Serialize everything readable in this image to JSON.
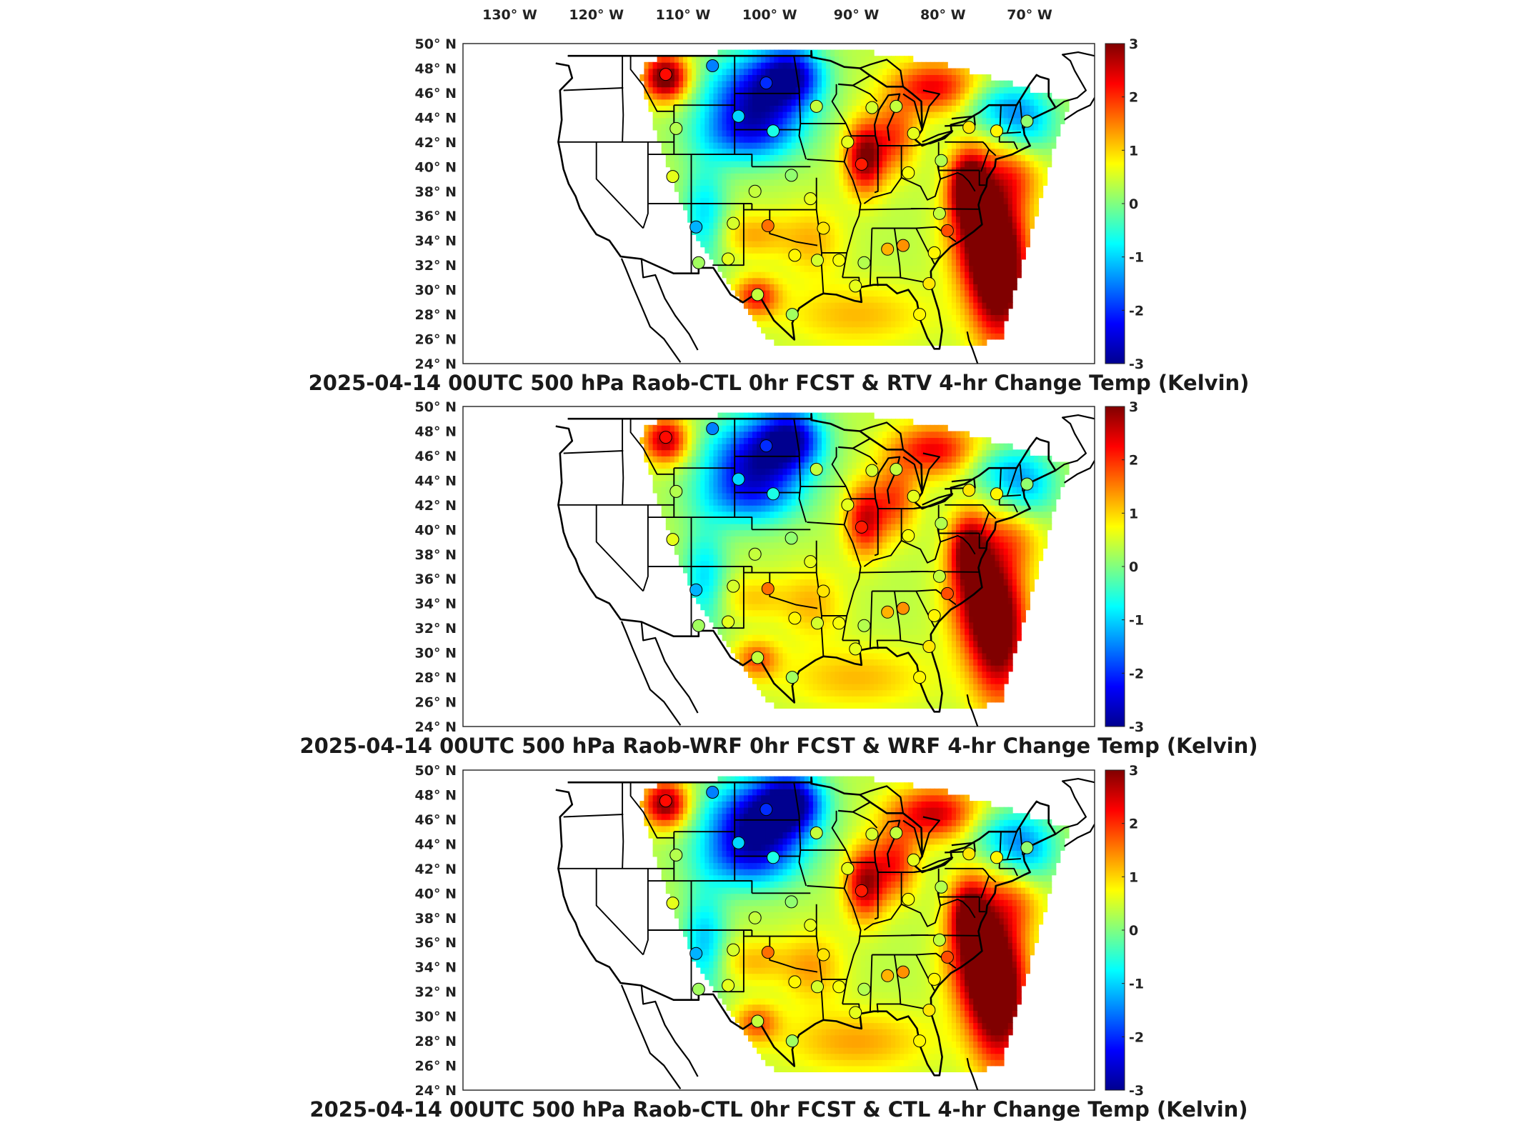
{
  "figure": {
    "panels": [
      {
        "title": "2025-04-14 00UTC 500 hPa Raob-CTL 0hr FCST & RTV 4-hr Change Temp (Kelvin)",
        "variant": 0
      },
      {
        "title": "2025-04-14 00UTC 500 hPa Raob-WRF 0hr FCST & WRF 4-hr Change Temp (Kelvin)",
        "variant": 1
      },
      {
        "title": "2025-04-14 00UTC 500 hPa Raob-CTL 0hr FCST & CTL 4-hr Change Temp (Kelvin)",
        "variant": 2
      }
    ],
    "lon_ticks": [
      {
        "value": -130,
        "label": "130° W"
      },
      {
        "value": -120,
        "label": "120° W"
      },
      {
        "value": -110,
        "label": "110° W"
      },
      {
        "value": -100,
        "label": "100° W"
      },
      {
        "value": -90,
        "label": "90° W"
      },
      {
        "value": -80,
        "label": "80° W"
      },
      {
        "value": -70,
        "label": "70° W"
      }
    ],
    "lat_ticks": [
      {
        "value": 50,
        "label": "50° N"
      },
      {
        "value": 48,
        "label": "48° N"
      },
      {
        "value": 46,
        "label": "46° N"
      },
      {
        "value": 44,
        "label": "44° N"
      },
      {
        "value": 42,
        "label": "42° N"
      },
      {
        "value": 40,
        "label": "40° N"
      },
      {
        "value": 38,
        "label": "38° N"
      },
      {
        "value": 36,
        "label": "36° N"
      },
      {
        "value": 34,
        "label": "34° N"
      },
      {
        "value": 32,
        "label": "32° N"
      },
      {
        "value": 30,
        "label": "30° N"
      },
      {
        "value": 28,
        "label": "28° N"
      },
      {
        "value": 26,
        "label": "26° N"
      },
      {
        "value": 24,
        "label": "24° N"
      }
    ],
    "colorbar": {
      "min": -3,
      "max": 3,
      "ticks": [
        3,
        2,
        1,
        0,
        -1,
        -2,
        -3
      ],
      "colors": [
        "#00008f",
        "#0000ff",
        "#0080ff",
        "#00ffff",
        "#80ff80",
        "#ffff00",
        "#ff8000",
        "#ff0000",
        "#800000"
      ]
    },
    "raob_stations": [
      {
        "lon": -112.0,
        "lat": 47.5,
        "value": 2.2
      },
      {
        "lon": -106.6,
        "lat": 48.2,
        "value": -1.5
      },
      {
        "lon": -110.8,
        "lat": 43.1,
        "value": 0.3
      },
      {
        "lon": -111.2,
        "lat": 39.2,
        "value": 0.6
      },
      {
        "lon": -108.5,
        "lat": 35.1,
        "value": -1.2
      },
      {
        "lon": -108.2,
        "lat": 32.2,
        "value": 0.2
      },
      {
        "lon": -104.2,
        "lat": 35.4,
        "value": 0.5
      },
      {
        "lon": -104.8,
        "lat": 32.5,
        "value": 0.6
      },
      {
        "lon": -101.7,
        "lat": 38.0,
        "value": 0.4
      },
      {
        "lon": -100.2,
        "lat": 35.2,
        "value": 1.6
      },
      {
        "lon": -97.5,
        "lat": 39.3,
        "value": 0.1
      },
      {
        "lon": -95.3,
        "lat": 37.4,
        "value": 0.6
      },
      {
        "lon": -93.8,
        "lat": 35.0,
        "value": 0.9
      },
      {
        "lon": -97.1,
        "lat": 32.8,
        "value": 0.8
      },
      {
        "lon": -94.5,
        "lat": 32.4,
        "value": 0.5
      },
      {
        "lon": -92.0,
        "lat": 32.4,
        "value": 0.7
      },
      {
        "lon": -89.1,
        "lat": 32.2,
        "value": 0.3
      },
      {
        "lon": -86.4,
        "lat": 33.3,
        "value": 1.2
      },
      {
        "lon": -84.6,
        "lat": 33.6,
        "value": 1.4
      },
      {
        "lon": -81.0,
        "lat": 33.0,
        "value": 0.8
      },
      {
        "lon": -79.5,
        "lat": 34.8,
        "value": 1.8
      },
      {
        "lon": -80.4,
        "lat": 36.2,
        "value": 0.4
      },
      {
        "lon": -81.6,
        "lat": 30.5,
        "value": 0.9
      },
      {
        "lon": -82.7,
        "lat": 28.0,
        "value": 0.8
      },
      {
        "lon": -90.1,
        "lat": 30.3,
        "value": 0.6
      },
      {
        "lon": -97.4,
        "lat": 28.0,
        "value": 0.2
      },
      {
        "lon": -101.4,
        "lat": 29.6,
        "value": 0.4
      },
      {
        "lon": -94.6,
        "lat": 44.9,
        "value": 0.4
      },
      {
        "lon": -91.0,
        "lat": 42.0,
        "value": 0.6
      },
      {
        "lon": -89.4,
        "lat": 40.2,
        "value": 2.1
      },
      {
        "lon": -88.2,
        "lat": 44.8,
        "value": 0.5
      },
      {
        "lon": -85.4,
        "lat": 44.9,
        "value": 0.4
      },
      {
        "lon": -83.4,
        "lat": 42.7,
        "value": 0.6
      },
      {
        "lon": -84.0,
        "lat": 39.5,
        "value": 0.7
      },
      {
        "lon": -80.2,
        "lat": 40.5,
        "value": 0.3
      },
      {
        "lon": -77.0,
        "lat": 43.2,
        "value": 0.9
      },
      {
        "lon": -73.8,
        "lat": 42.9,
        "value": 0.8
      },
      {
        "lon": -70.3,
        "lat": 43.7,
        "value": 0.1
      },
      {
        "lon": -99.6,
        "lat": 42.9,
        "value": -0.6
      },
      {
        "lon": -100.4,
        "lat": 46.8,
        "value": -2.0
      },
      {
        "lon": -103.6,
        "lat": 44.1,
        "value": -1.0
      }
    ]
  }
}
